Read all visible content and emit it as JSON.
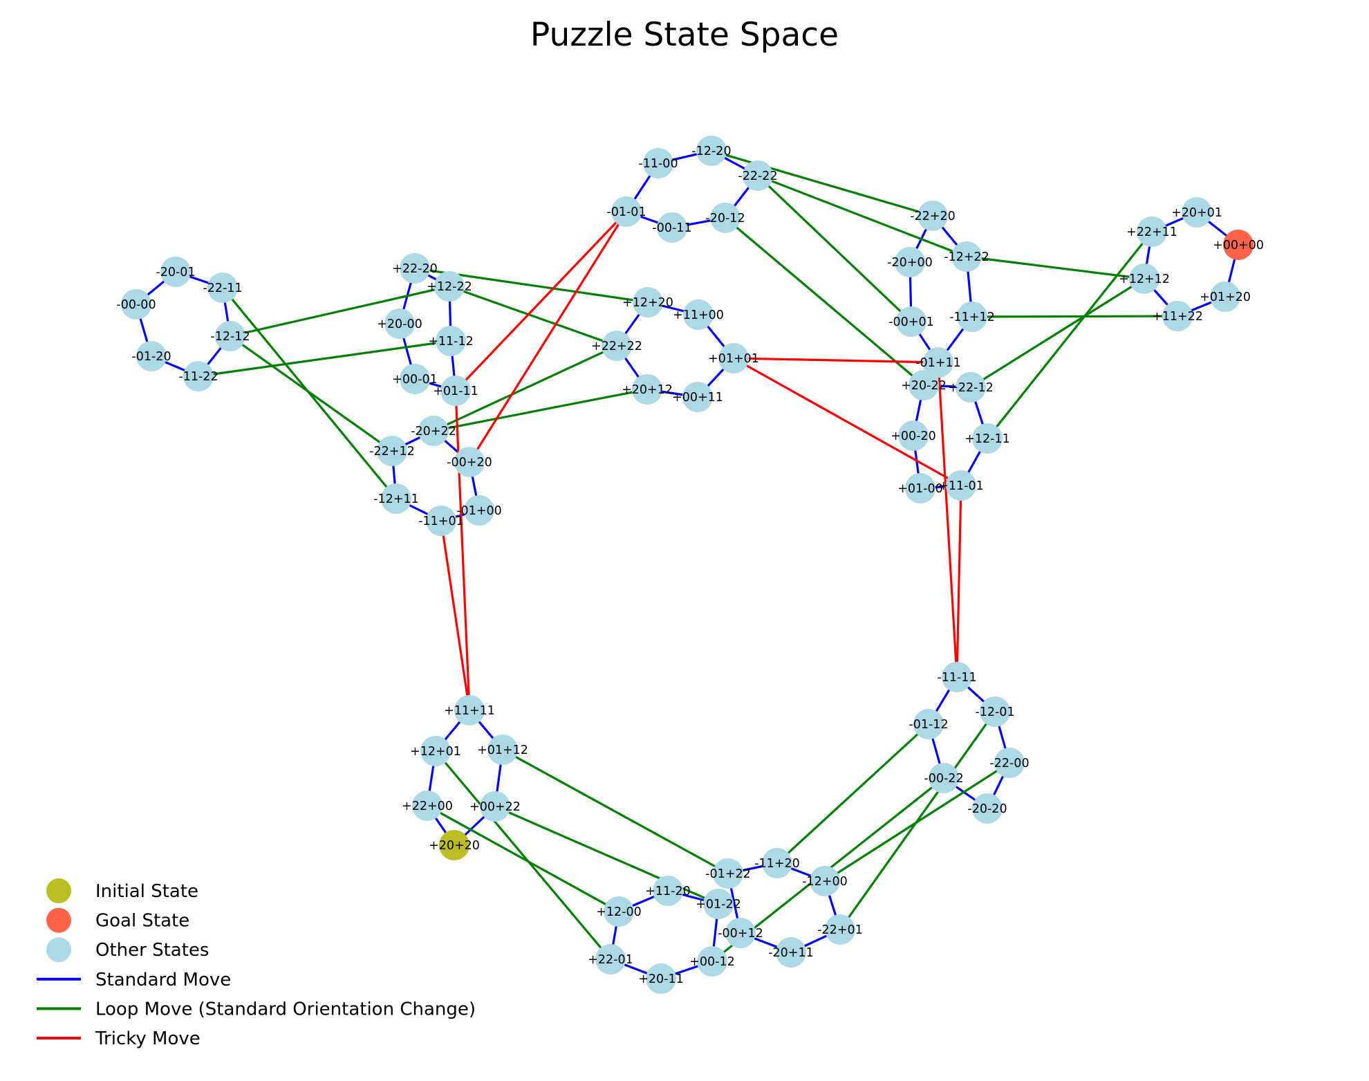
{
  "title": "Puzzle State Space",
  "colors": {
    "initial": "#bcbd22",
    "goal": "#ff6347",
    "other": "#add8e6",
    "standard": "#0000ff",
    "loop": "#008000",
    "tricky": "#ff0000"
  },
  "legend": [
    {
      "kind": "marker",
      "color_key": "initial",
      "label": "Initial State"
    },
    {
      "kind": "marker",
      "color_key": "goal",
      "label": "Goal State"
    },
    {
      "kind": "marker",
      "color_key": "other",
      "label": "Other States"
    },
    {
      "kind": "line",
      "color_key": "standard",
      "label": "Standard Move"
    },
    {
      "kind": "line",
      "color_key": "loop",
      "label": "Loop Move (Standard Orientation Change)"
    },
    {
      "kind": "line",
      "color_key": "tricky",
      "label": "Tricky Move"
    }
  ],
  "nodes": [
    {
      "id": "+20+20",
      "type": "initial"
    },
    {
      "id": "+00+00",
      "type": "goal"
    },
    {
      "id": "-20-01"
    },
    {
      "id": "-22-11"
    },
    {
      "id": "-00-00"
    },
    {
      "id": "-12-12"
    },
    {
      "id": "-01-20"
    },
    {
      "id": "-11-22"
    },
    {
      "id": "+22-20"
    },
    {
      "id": "+12-22"
    },
    {
      "id": "+20-00"
    },
    {
      "id": "+11-12"
    },
    {
      "id": "+00-01"
    },
    {
      "id": "+01-11"
    },
    {
      "id": "-20+22"
    },
    {
      "id": "-22+12"
    },
    {
      "id": "-00+20"
    },
    {
      "id": "-12+11"
    },
    {
      "id": "-11+01"
    },
    {
      "id": "-01+00"
    },
    {
      "id": "-11-00"
    },
    {
      "id": "-12-20"
    },
    {
      "id": "-22-22"
    },
    {
      "id": "-01-01"
    },
    {
      "id": "-00-11"
    },
    {
      "id": "-20-12"
    },
    {
      "id": "+12+20"
    },
    {
      "id": "+11+00"
    },
    {
      "id": "+22+22"
    },
    {
      "id": "+01+01"
    },
    {
      "id": "+20+12"
    },
    {
      "id": "+00+11"
    },
    {
      "id": "-22+20"
    },
    {
      "id": "-20+00"
    },
    {
      "id": "-12+22"
    },
    {
      "id": "-00+01"
    },
    {
      "id": "-11+12"
    },
    {
      "id": "-01+11"
    },
    {
      "id": "+20-22"
    },
    {
      "id": "+22-12"
    },
    {
      "id": "+00-20"
    },
    {
      "id": "+12-11"
    },
    {
      "id": "+01-00"
    },
    {
      "id": "+11-01"
    },
    {
      "id": "+22+11"
    },
    {
      "id": "+20+01"
    },
    {
      "id": "+12+12"
    },
    {
      "id": "+01+20"
    },
    {
      "id": "+11+22"
    },
    {
      "id": "+11+11"
    },
    {
      "id": "+12+01"
    },
    {
      "id": "+01+12"
    },
    {
      "id": "+22+00"
    },
    {
      "id": "+00+22"
    },
    {
      "id": "-11-11"
    },
    {
      "id": "-12-01"
    },
    {
      "id": "-01-12"
    },
    {
      "id": "-22-00"
    },
    {
      "id": "-00-22"
    },
    {
      "id": "-20-20"
    },
    {
      "id": "-11+20"
    },
    {
      "id": "-01+22"
    },
    {
      "id": "-12+00"
    },
    {
      "id": "+11-20"
    },
    {
      "id": "+01-22"
    },
    {
      "id": "+12-00"
    },
    {
      "id": "-00+12"
    },
    {
      "id": "-22+01"
    },
    {
      "id": "-20+11"
    },
    {
      "id": "+22-01"
    },
    {
      "id": "+00-12"
    },
    {
      "id": "+20-11"
    }
  ],
  "edges": [
    {
      "a": "-20-01",
      "b": "-22-11",
      "type": "standard"
    },
    {
      "a": "-20-01",
      "b": "-00-00",
      "type": "standard"
    },
    {
      "a": "-00-00",
      "b": "-01-20",
      "type": "standard"
    },
    {
      "a": "-01-20",
      "b": "-11-22",
      "type": "standard"
    },
    {
      "a": "-11-22",
      "b": "-12-12",
      "type": "standard"
    },
    {
      "a": "-12-12",
      "b": "-22-11",
      "type": "standard"
    },
    {
      "a": "+22-20",
      "b": "+12-22",
      "type": "standard"
    },
    {
      "a": "+22-20",
      "b": "+20-00",
      "type": "standard"
    },
    {
      "a": "+20-00",
      "b": "+00-01",
      "type": "standard"
    },
    {
      "a": "+00-01",
      "b": "+01-11",
      "type": "standard"
    },
    {
      "a": "+01-11",
      "b": "+11-12",
      "type": "standard"
    },
    {
      "a": "+11-12",
      "b": "+12-22",
      "type": "standard"
    },
    {
      "a": "-20+22",
      "b": "-00+20",
      "type": "standard"
    },
    {
      "a": "-20+22",
      "b": "-22+12",
      "type": "standard"
    },
    {
      "a": "-22+12",
      "b": "-12+11",
      "type": "standard"
    },
    {
      "a": "-12+11",
      "b": "-11+01",
      "type": "standard"
    },
    {
      "a": "-11+01",
      "b": "-01+00",
      "type": "standard"
    },
    {
      "a": "-01+00",
      "b": "-00+20",
      "type": "standard"
    },
    {
      "a": "-11-00",
      "b": "-12-20",
      "type": "standard"
    },
    {
      "a": "-12-20",
      "b": "-22-22",
      "type": "standard"
    },
    {
      "a": "-22-22",
      "b": "-20-12",
      "type": "standard"
    },
    {
      "a": "-20-12",
      "b": "-00-11",
      "type": "standard"
    },
    {
      "a": "-00-11",
      "b": "-01-01",
      "type": "standard"
    },
    {
      "a": "-01-01",
      "b": "-11-00",
      "type": "standard"
    },
    {
      "a": "+12+20",
      "b": "+11+00",
      "type": "standard"
    },
    {
      "a": "+11+00",
      "b": "+01+01",
      "type": "standard"
    },
    {
      "a": "+01+01",
      "b": "+00+11",
      "type": "standard"
    },
    {
      "a": "+00+11",
      "b": "+20+12",
      "type": "standard"
    },
    {
      "a": "+20+12",
      "b": "+22+22",
      "type": "standard"
    },
    {
      "a": "+22+22",
      "b": "+12+20",
      "type": "standard"
    },
    {
      "a": "-22+20",
      "b": "-12+22",
      "type": "standard"
    },
    {
      "a": "-22+20",
      "b": "-20+00",
      "type": "standard"
    },
    {
      "a": "-20+00",
      "b": "-00+01",
      "type": "standard"
    },
    {
      "a": "-00+01",
      "b": "-01+11",
      "type": "standard"
    },
    {
      "a": "-01+11",
      "b": "-11+12",
      "type": "standard"
    },
    {
      "a": "-11+12",
      "b": "-12+22",
      "type": "standard"
    },
    {
      "a": "+20-22",
      "b": "+22-12",
      "type": "standard"
    },
    {
      "a": "+20-22",
      "b": "+00-20",
      "type": "standard"
    },
    {
      "a": "+00-20",
      "b": "+01-00",
      "type": "standard"
    },
    {
      "a": "+01-00",
      "b": "+11-01",
      "type": "standard"
    },
    {
      "a": "+11-01",
      "b": "+12-11",
      "type": "standard"
    },
    {
      "a": "+12-11",
      "b": "+22-12",
      "type": "standard"
    },
    {
      "a": "+22+11",
      "b": "+20+01",
      "type": "standard"
    },
    {
      "a": "+20+01",
      "b": "+00+00",
      "type": "standard"
    },
    {
      "a": "+00+00",
      "b": "+01+20",
      "type": "standard"
    },
    {
      "a": "+01+20",
      "b": "+11+22",
      "type": "standard"
    },
    {
      "a": "+11+22",
      "b": "+12+12",
      "type": "standard"
    },
    {
      "a": "+12+12",
      "b": "+22+11",
      "type": "standard"
    },
    {
      "a": "+11+11",
      "b": "+12+01",
      "type": "standard"
    },
    {
      "a": "+11+11",
      "b": "+01+12",
      "type": "standard"
    },
    {
      "a": "+12+01",
      "b": "+22+00",
      "type": "standard"
    },
    {
      "a": "+22+00",
      "b": "+20+20",
      "type": "standard"
    },
    {
      "a": "+20+20",
      "b": "+00+22",
      "type": "standard"
    },
    {
      "a": "+00+22",
      "b": "+01+12",
      "type": "standard"
    },
    {
      "a": "-11-11",
      "b": "-12-01",
      "type": "standard"
    },
    {
      "a": "-11-11",
      "b": "-01-12",
      "type": "standard"
    },
    {
      "a": "-12-01",
      "b": "-22-00",
      "type": "standard"
    },
    {
      "a": "-22-00",
      "b": "-20-20",
      "type": "standard"
    },
    {
      "a": "-20-20",
      "b": "-00-22",
      "type": "standard"
    },
    {
      "a": "-00-22",
      "b": "-01-12",
      "type": "standard"
    },
    {
      "a": "-11+20",
      "b": "-01+22",
      "type": "standard"
    },
    {
      "a": "-11+20",
      "b": "-12+00",
      "type": "standard"
    },
    {
      "a": "-12+00",
      "b": "-22+01",
      "type": "standard"
    },
    {
      "a": "-22+01",
      "b": "-20+11",
      "type": "standard"
    },
    {
      "a": "-20+11",
      "b": "-00+12",
      "type": "standard"
    },
    {
      "a": "-00+12",
      "b": "-01+22",
      "type": "standard"
    },
    {
      "a": "+11-20",
      "b": "+01-22",
      "type": "standard"
    },
    {
      "a": "+11-20",
      "b": "+12-00",
      "type": "standard"
    },
    {
      "a": "+12-00",
      "b": "+22-01",
      "type": "standard"
    },
    {
      "a": "+22-01",
      "b": "+20-11",
      "type": "standard"
    },
    {
      "a": "+20-11",
      "b": "+00-12",
      "type": "standard"
    },
    {
      "a": "+00-12",
      "b": "+01-22",
      "type": "standard"
    },
    {
      "a": "-22-11",
      "b": "-12+11",
      "type": "loop"
    },
    {
      "a": "-12-12",
      "b": "+12-22",
      "type": "loop"
    },
    {
      "a": "-12-12",
      "b": "-22+12",
      "type": "loop"
    },
    {
      "a": "-11-22",
      "b": "+11-12",
      "type": "loop"
    },
    {
      "a": "+22-20",
      "b": "+12+20",
      "type": "loop"
    },
    {
      "a": "+12-22",
      "b": "+22+22",
      "type": "loop"
    },
    {
      "a": "-20+22",
      "b": "+22+22",
      "type": "loop"
    },
    {
      "a": "-20+22",
      "b": "+20+12",
      "type": "loop"
    },
    {
      "a": "-12-20",
      "b": "-22+20",
      "type": "loop"
    },
    {
      "a": "-22-22",
      "b": "-12+22",
      "type": "loop"
    },
    {
      "a": "-22-22",
      "b": "-00+01",
      "type": "loop"
    },
    {
      "a": "-20-12",
      "b": "+20-22",
      "type": "loop"
    },
    {
      "a": "-12+22",
      "b": "+12+12",
      "type": "loop"
    },
    {
      "a": "-11+12",
      "b": "+11+22",
      "type": "loop"
    },
    {
      "a": "+22-12",
      "b": "+12+12",
      "type": "loop"
    },
    {
      "a": "+12-11",
      "b": "+22+11",
      "type": "loop"
    },
    {
      "a": "+12+01",
      "b": "+22-01",
      "type": "loop"
    },
    {
      "a": "+01+12",
      "b": "-01+22",
      "type": "loop"
    },
    {
      "a": "+22+00",
      "b": "+12-00",
      "type": "loop"
    },
    {
      "a": "+00+22",
      "b": "+01-22",
      "type": "loop"
    },
    {
      "a": "-01-12",
      "b": "-11+20",
      "type": "loop"
    },
    {
      "a": "-12-01",
      "b": "-22+01",
      "type": "loop"
    },
    {
      "a": "-22-00",
      "b": "-12+00",
      "type": "loop"
    },
    {
      "a": "-00-22",
      "b": "+00-12",
      "type": "loop"
    },
    {
      "a": "+01-11",
      "b": "-01-01",
      "type": "tricky"
    },
    {
      "a": "+01-11",
      "b": "+11+11",
      "type": "tricky"
    },
    {
      "a": "-00+20",
      "b": "-01-01",
      "type": "tricky"
    },
    {
      "a": "-11+01",
      "b": "+11+11",
      "type": "tricky"
    },
    {
      "a": "+01+01",
      "b": "-01+11",
      "type": "tricky"
    },
    {
      "a": "+01+01",
      "b": "+11-01",
      "type": "tricky"
    },
    {
      "a": "-01+11",
      "b": "-11-11",
      "type": "tricky"
    },
    {
      "a": "+11-01",
      "b": "-11-11",
      "type": "tricky"
    }
  ]
}
